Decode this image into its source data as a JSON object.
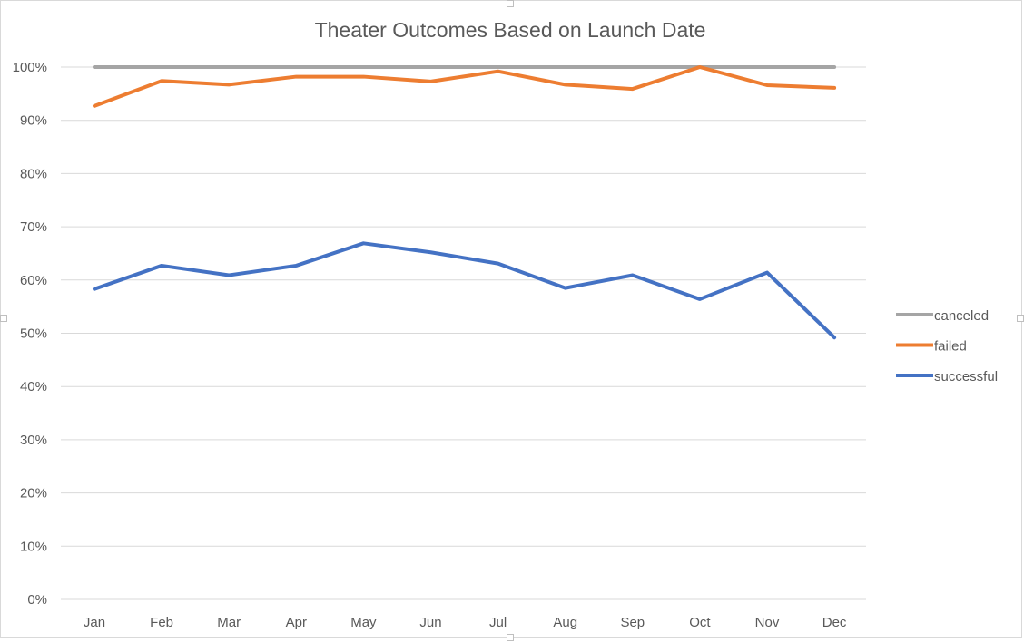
{
  "chart_data": {
    "type": "line",
    "title": "Theater Outcomes Based on Launch Date",
    "xlabel": "",
    "ylabel": "",
    "categories": [
      "Jan",
      "Feb",
      "Mar",
      "Apr",
      "May",
      "Jun",
      "Jul",
      "Aug",
      "Sep",
      "Oct",
      "Nov",
      "Dec"
    ],
    "ylim": [
      0,
      1
    ],
    "yticks": [
      0,
      0.1,
      0.2,
      0.3,
      0.4,
      0.5,
      0.6,
      0.7,
      0.8,
      0.9,
      1.0
    ],
    "ytick_labels": [
      "0%",
      "10%",
      "20%",
      "30%",
      "40%",
      "50%",
      "60%",
      "70%",
      "80%",
      "90%",
      "100%"
    ],
    "grid": true,
    "legend_position": "right",
    "series": [
      {
        "name": "canceled",
        "color": "#a5a5a5",
        "values": [
          1.0,
          1.0,
          1.0,
          1.0,
          1.0,
          1.0,
          1.0,
          1.0,
          1.0,
          1.0,
          1.0,
          1.0
        ]
      },
      {
        "name": "failed",
        "color": "#ed7d31",
        "values": [
          0.927,
          0.974,
          0.967,
          0.982,
          0.982,
          0.973,
          0.992,
          0.967,
          0.959,
          1.0,
          0.966,
          0.961
        ]
      },
      {
        "name": "successful",
        "color": "#4472c4",
        "values": [
          0.583,
          0.627,
          0.609,
          0.627,
          0.669,
          0.652,
          0.631,
          0.585,
          0.609,
          0.564,
          0.614,
          0.492
        ]
      }
    ]
  }
}
